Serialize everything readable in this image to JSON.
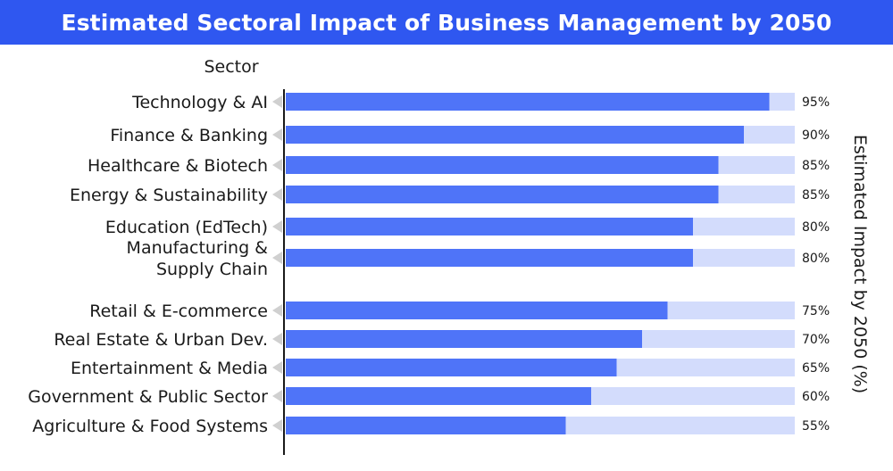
{
  "title": "Estimated Sectoral Impact of Business Management by 2050",
  "colors": {
    "title_bg": "#2f57f0",
    "bar_fill": "#4f74f8",
    "bar_track": "#d3dcfc",
    "axis": "#1a1a1a",
    "marker": "#d0d0d0"
  },
  "chart_data": {
    "type": "bar",
    "orientation": "horizontal",
    "title": "Estimated Sectoral Impact of Business Management by 2050",
    "ylabel": "Sector",
    "xlabel": "Estimated Impact by 2050 (%)",
    "xlim": [
      0,
      100
    ],
    "grid": false,
    "categories": [
      [
        "Technology & AI"
      ],
      [
        "Finance & Banking"
      ],
      [
        "Healthcare & Biotech"
      ],
      [
        "Energy & Sustainability"
      ],
      [
        "Education (EdTech)"
      ],
      [
        "Manufacturing &",
        "Supply Chain"
      ],
      [
        "Retail & E-commerce"
      ],
      [
        "Real Estate & Urban Dev."
      ],
      [
        "Entertainment & Media"
      ],
      [
        "Government & Public Sector"
      ],
      [
        "Agriculture & Food Systems"
      ]
    ],
    "values": [
      95,
      90,
      85,
      85,
      80,
      80,
      75,
      70,
      65,
      60,
      55
    ],
    "value_labels": [
      "95%",
      "90%",
      "85%",
      "85%",
      "80%",
      "80%",
      "75%",
      "70%",
      "65%",
      "60%",
      "55%"
    ]
  }
}
